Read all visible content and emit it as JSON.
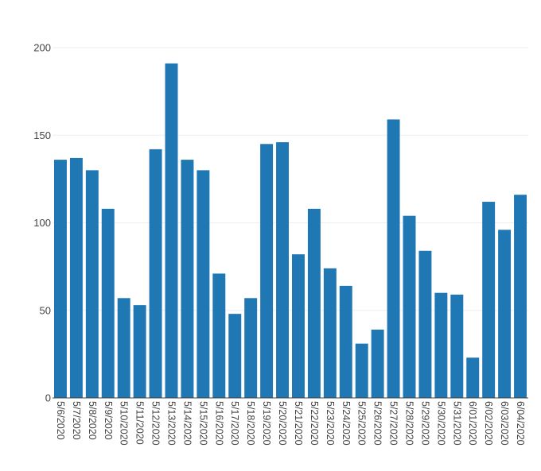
{
  "chart_data": {
    "type": "bar",
    "title": "",
    "xlabel": "",
    "ylabel": "",
    "ylim": [
      0,
      200
    ],
    "yticks": [
      0,
      50,
      100,
      150,
      200
    ],
    "grid": true,
    "bar_color": "#1f77b4",
    "categories": [
      "5/6/2020",
      "5/7/2020",
      "5/8/2020",
      "5/9/2020",
      "5/10/2020",
      "5/11/2020",
      "5/12/2020",
      "5/13/2020",
      "5/14/2020",
      "5/15/2020",
      "5/16/2020",
      "5/17/2020",
      "5/18/2020",
      "5/19/2020",
      "5/20/2020",
      "5/21/2020",
      "5/22/2020",
      "5/23/2020",
      "5/24/2020",
      "5/25/2020",
      "5/26/2020",
      "5/27/2020",
      "5/28/2020",
      "5/29/2020",
      "5/30/2020",
      "5/31/2020",
      "6/01/2020",
      "6/02/2020",
      "6/03/2020",
      "6/04/2020"
    ],
    "values": [
      136,
      137,
      130,
      108,
      57,
      53,
      142,
      191,
      136,
      130,
      71,
      48,
      57,
      145,
      146,
      82,
      108,
      74,
      64,
      31,
      39,
      159,
      104,
      84,
      60,
      59,
      23,
      112,
      96,
      116
    ]
  }
}
